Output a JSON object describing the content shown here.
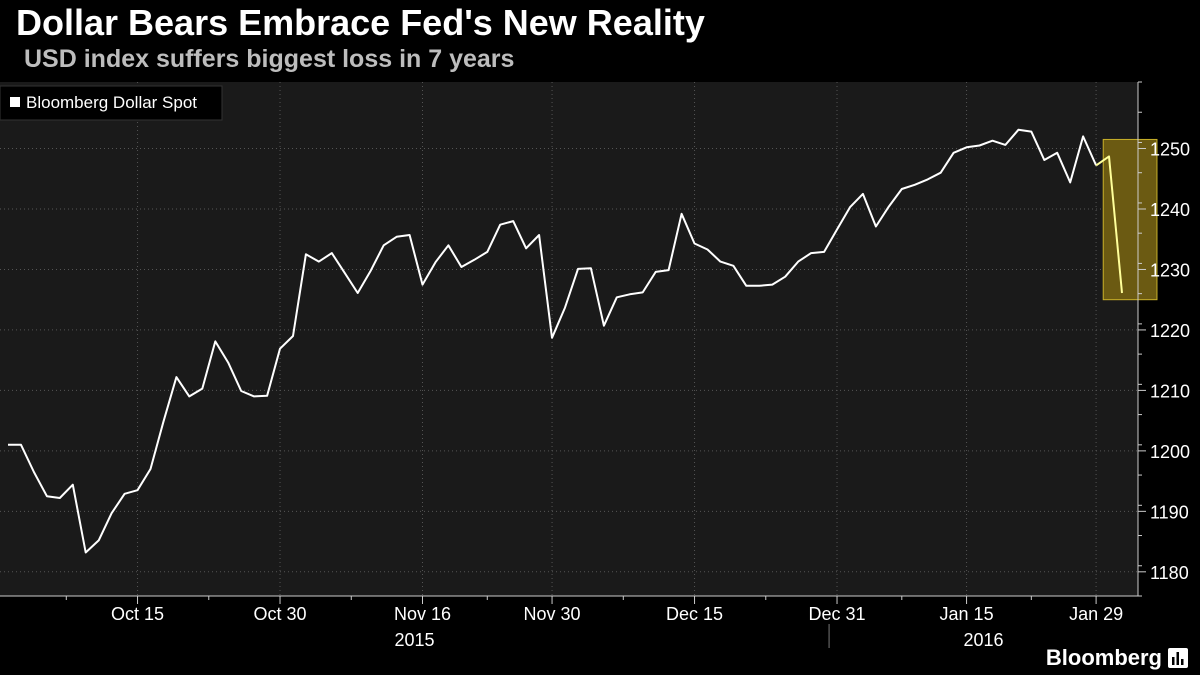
{
  "header": {
    "title": "Dollar Bears Embrace Fed's New Reality",
    "subtitle": "USD index suffers biggest loss in 7 years"
  },
  "footer": {
    "brand": "Bloomberg"
  },
  "colors": {
    "background": "#000000",
    "plot_background": "#1a1a1a",
    "line": "#ffffff",
    "highlight_line": "#ffff9a",
    "highlight_fill": "#6b5a12",
    "highlight_border": "#c8b02a",
    "text": "#ffffff"
  },
  "chart_data": {
    "type": "line",
    "title": "Dollar Bears Embrace Fed's New Reality",
    "subtitle": "USD index suffers biggest loss in 7 years",
    "legend": [
      "Bloomberg Dollar Spot"
    ],
    "legend_position": "top-left",
    "xlabel": "",
    "ylabel": "",
    "ylim": [
      1176,
      1261
    ],
    "yticks": [
      1180,
      1190,
      1200,
      1210,
      1220,
      1230,
      1240,
      1250
    ],
    "grid": true,
    "x_ticks": [
      {
        "index": 10,
        "label": "Oct 15"
      },
      {
        "index": 21,
        "label": "Oct 30"
      },
      {
        "index": 32,
        "label": "Nov 16"
      },
      {
        "index": 42,
        "label": "Nov 30"
      },
      {
        "index": 53,
        "label": "Dec 15"
      },
      {
        "index": 64,
        "label": "Dec 31"
      },
      {
        "index": 74,
        "label": "Jan 15"
      },
      {
        "index": 84,
        "label": "Jan 29"
      }
    ],
    "year_labels": [
      {
        "label": "2015",
        "start_index": 0,
        "end_index": 63
      },
      {
        "label": "2016",
        "start_index": 63,
        "end_index": 89
      }
    ],
    "highlight": {
      "start_index": 85,
      "end_index": 88,
      "ymin": 1225,
      "ymax": 1251.5
    },
    "series": [
      {
        "name": "Bloomberg Dollar Spot",
        "values": [
          1201,
          1201,
          1196.5,
          1192.5,
          1192.2,
          1194.4,
          1183.2,
          1185.2,
          1189.7,
          1192.9,
          1193.5,
          1197,
          1204.8,
          1212.2,
          1209,
          1210.3,
          1218.1,
          1214.6,
          1209.9,
          1209,
          1209.1,
          1216.9,
          1219,
          1232.5,
          1231.3,
          1232.7,
          1229.4,
          1226.1,
          1229.8,
          1234,
          1235.4,
          1235.7,
          1227.5,
          1231.2,
          1234,
          1230.4,
          1231.6,
          1232.9,
          1237.4,
          1238,
          1233.5,
          1235.7,
          1218.7,
          1223.7,
          1230.1,
          1230.2,
          1220.7,
          1225.4,
          1225.9,
          1226.2,
          1229.6,
          1229.9,
          1239.2,
          1234.3,
          1233.3,
          1231.3,
          1230.6,
          1227.3,
          1227.3,
          1227.5,
          1228.8,
          1231.3,
          1232.7,
          1232.9,
          1236.6,
          1240.3,
          1242.5,
          1237.1,
          1240.4,
          1243.3,
          1244,
          1244.9,
          1246,
          1249.3,
          1250.2,
          1250.5,
          1251.3,
          1250.6,
          1253.1,
          1252.8,
          1248.1,
          1249.3,
          1244.4,
          1252,
          1247.2,
          1248.7,
          1226.1
        ]
      }
    ]
  }
}
